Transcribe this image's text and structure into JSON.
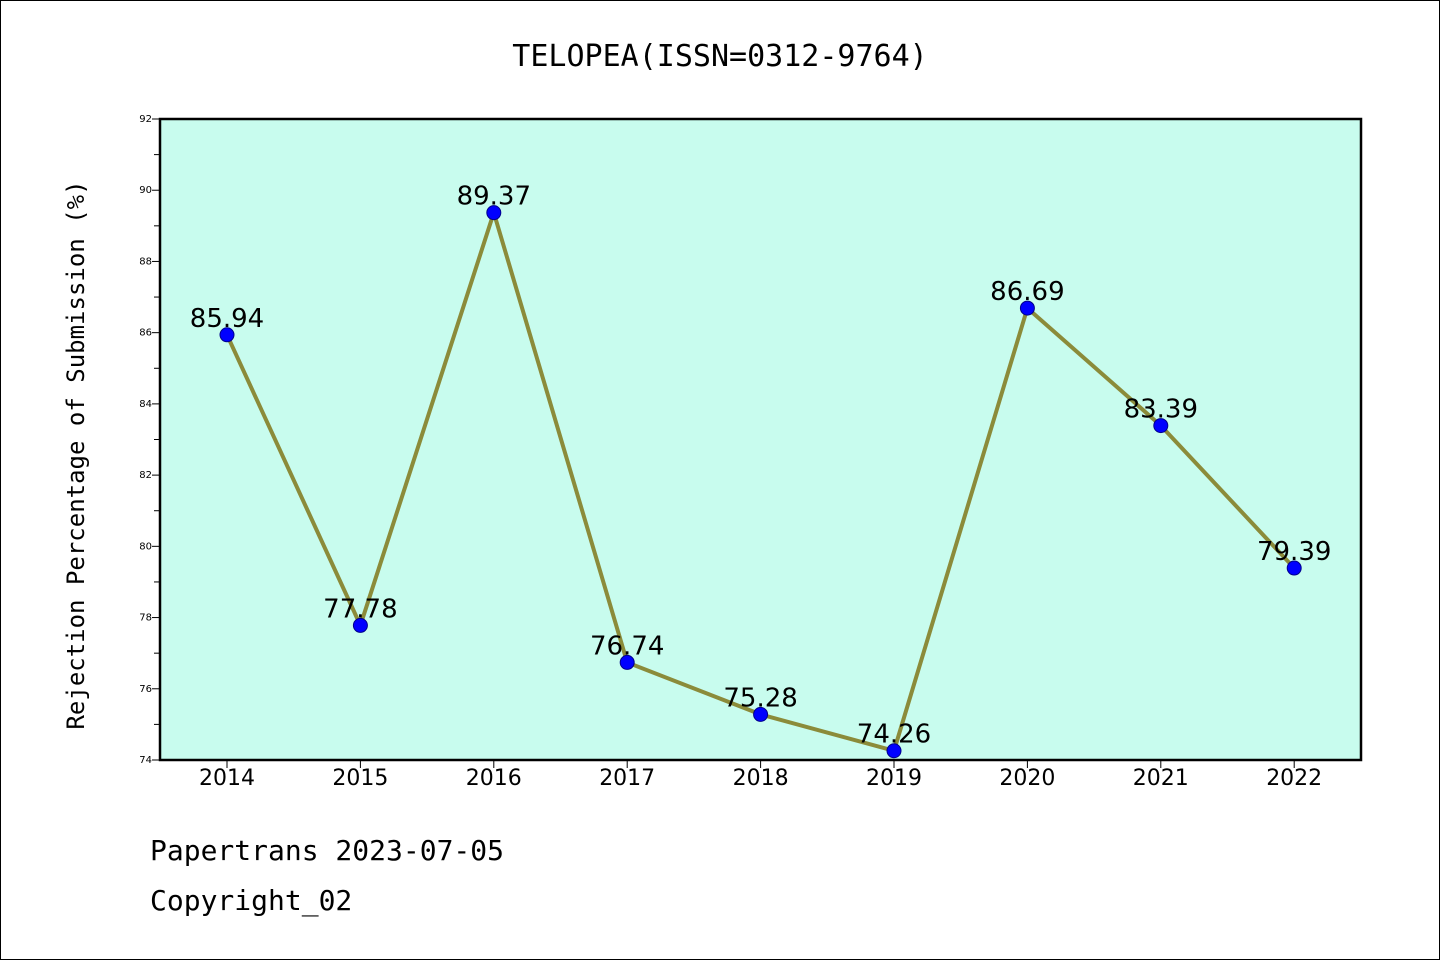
{
  "chart_data": {
    "type": "line",
    "title": "TELOPEA(ISSN=0312-9764)",
    "xlabel": "",
    "ylabel": "Rejection Percentage of Submission (%)",
    "categories": [
      "2014",
      "2015",
      "2016",
      "2017",
      "2018",
      "2019",
      "2020",
      "2021",
      "2022"
    ],
    "values": [
      85.94,
      77.78,
      89.37,
      76.74,
      75.28,
      74.26,
      86.69,
      83.39,
      79.39
    ],
    "data_labels": [
      "85.94",
      "77.78",
      "89.37",
      "76.74",
      "75.28",
      "74.26",
      "86.69",
      "83.39",
      "79.39"
    ],
    "ylim": [
      74,
      92
    ],
    "yticks": [
      "74",
      "76",
      "78",
      "80",
      "82",
      "84",
      "86",
      "88",
      "90",
      "92"
    ],
    "grid": false,
    "colors": {
      "plot_background": "#c8fcee",
      "line": "#8b8b3a",
      "marker": "#0000ff"
    }
  },
  "footer": {
    "line1": "Papertrans 2023-07-05",
    "line2": "Copyright_02"
  }
}
